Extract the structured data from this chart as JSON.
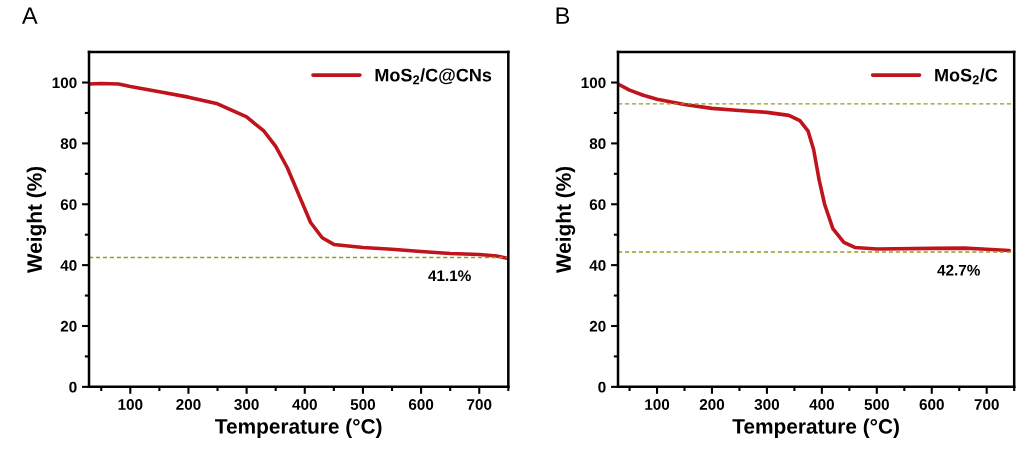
{
  "chart_data": [
    {
      "type": "line",
      "title": "A",
      "xlabel": "Temperature (°C)",
      "ylabel": "Weight (%)",
      "legend": "top right",
      "xlim": [
        29,
        750
      ],
      "ylim": [
        0,
        110
      ],
      "xticks": [
        {
          "value": 50,
          "label": null
        },
        100,
        {
          "value": 150,
          "label": null
        },
        200,
        {
          "value": 250,
          "label": null
        },
        300,
        {
          "value": 350,
          "label": null
        },
        400,
        {
          "value": 450,
          "label": null
        },
        500,
        {
          "value": 550,
          "label": null
        },
        600,
        {
          "value": 650,
          "label": null
        },
        700,
        {
          "value": 750,
          "label": null
        }
      ],
      "yticks": [
        0,
        {
          "value": 10,
          "label": null
        },
        20,
        {
          "value": 30,
          "label": null
        },
        40,
        {
          "value": 50,
          "label": null
        },
        60,
        {
          "value": 70,
          "label": null
        },
        80,
        {
          "value": 90,
          "label": null
        },
        100
      ],
      "series": [
        {
          "name": "MoS$_{2}$/C@CNs",
          "color": "#c0141c",
          "x": [
            29,
            50,
            80,
            100,
            150,
            200,
            250,
            300,
            330,
            350,
            370,
            390,
            410,
            430,
            450,
            500,
            550,
            600,
            650,
            700,
            730,
            750
          ],
          "values": [
            99.5,
            99.7,
            99.5,
            98.7,
            97,
            95.2,
            93,
            88.7,
            84,
            79,
            72,
            63,
            54,
            49,
            46.8,
            45.8,
            45.2,
            44.5,
            43.8,
            43.5,
            43,
            42.2
          ]
        }
      ],
      "ref_lines": [
        {
          "axis": "y",
          "value": 42.5,
          "color": "#9a9a20",
          "line_style": "dashed"
        }
      ],
      "annotations": [
        "41.1%"
      ]
    },
    {
      "type": "line",
      "title": "B",
      "xlabel": "Temperature (°C)",
      "ylabel": "Weight (%)",
      "legend": "top right",
      "xlim": [
        29,
        750
      ],
      "ylim": [
        0,
        110
      ],
      "xticks": [
        {
          "value": 50,
          "label": null
        },
        100,
        {
          "value": 150,
          "label": null
        },
        200,
        {
          "value": 250,
          "label": null
        },
        300,
        {
          "value": 350,
          "label": null
        },
        400,
        {
          "value": 450,
          "label": null
        },
        500,
        {
          "value": 550,
          "label": null
        },
        600,
        {
          "value": 650,
          "label": null
        },
        700,
        {
          "value": 750,
          "label": null
        }
      ],
      "yticks": [
        0,
        {
          "value": 10,
          "label": null
        },
        20,
        {
          "value": 30,
          "label": null
        },
        40,
        {
          "value": 50,
          "label": null
        },
        60,
        {
          "value": 70,
          "label": null
        },
        80,
        {
          "value": 90,
          "label": null
        },
        100
      ],
      "series": [
        {
          "name": "MoS$_{2}$/C",
          "color": "#c0141c",
          "x": [
            29,
            50,
            75,
            100,
            150,
            200,
            250,
            300,
            340,
            360,
            375,
            385,
            395,
            405,
            420,
            440,
            460,
            500,
            600,
            660,
            700,
            741
          ],
          "values": [
            99.5,
            97.5,
            95.8,
            94.5,
            92.8,
            91.5,
            90.8,
            90.2,
            89.2,
            87.5,
            84,
            78,
            68,
            60,
            52,
            47.5,
            45.8,
            45.3,
            45.5,
            45.6,
            45.2,
            44.8
          ]
        }
      ],
      "ref_lines": [
        {
          "axis": "y",
          "value": 93,
          "color": "#9a9a20",
          "line_style": "dashed"
        },
        {
          "axis": "y",
          "value": 44.3,
          "color": "#9a9a20",
          "line_style": "dashed"
        }
      ],
      "annotations": [
        "42.7%"
      ]
    }
  ]
}
